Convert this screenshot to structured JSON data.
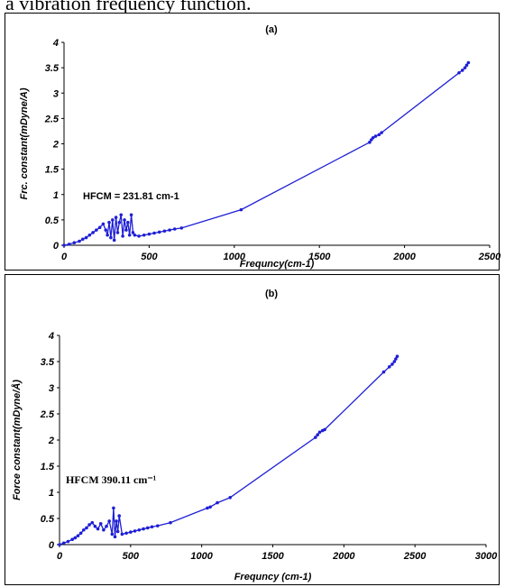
{
  "header": {
    "text": "a vibration frequency function."
  },
  "chart_data": [
    {
      "type": "line",
      "title": "(a)",
      "xlabel": "Frequncy(cm-1)",
      "ylabel": "Frc. constant(mDyne/A)",
      "xlim": [
        0,
        2500
      ],
      "ylim": [
        0,
        4
      ],
      "xticks": [
        "0",
        "500",
        "1000",
        "1500",
        "2000",
        "2500"
      ],
      "yticks": [
        "0",
        "0.5",
        "1",
        "1.5",
        "2",
        "2.5",
        "3",
        "3.5",
        "4"
      ],
      "annotation": "HFCM = 231.81 cm-1",
      "color": "#1f1fd6",
      "x": [
        0,
        30,
        60,
        90,
        110,
        130,
        150,
        170,
        190,
        210,
        230,
        245,
        255,
        265,
        275,
        285,
        295,
        305,
        315,
        325,
        335,
        345,
        355,
        365,
        375,
        385,
        395,
        405,
        415,
        440,
        470,
        500,
        530,
        560,
        590,
        620,
        650,
        690,
        1040,
        1795,
        1805,
        1815,
        1830,
        1850,
        1865,
        2320,
        2340,
        2355,
        2365,
        2375
      ],
      "y": [
        0.0,
        0.02,
        0.05,
        0.08,
        0.12,
        0.15,
        0.2,
        0.25,
        0.3,
        0.35,
        0.42,
        0.3,
        0.2,
        0.45,
        0.15,
        0.5,
        0.1,
        0.55,
        0.25,
        0.45,
        0.6,
        0.18,
        0.5,
        0.3,
        0.45,
        0.2,
        0.6,
        0.25,
        0.2,
        0.18,
        0.2,
        0.22,
        0.24,
        0.26,
        0.28,
        0.3,
        0.32,
        0.34,
        0.7,
        2.03,
        2.08,
        2.12,
        2.15,
        2.18,
        2.22,
        3.4,
        3.45,
        3.5,
        3.55,
        3.6
      ]
    },
    {
      "type": "line",
      "title": "(b)",
      "xlabel": "Frequncy (cm-1)",
      "ylabel": "Force constant(mDyne/Å)",
      "xlim": [
        0,
        3000
      ],
      "ylim": [
        0,
        4
      ],
      "xticks": [
        "0",
        "500",
        "1000",
        "1500",
        "2000",
        "2500",
        "3000"
      ],
      "yticks": [
        "0",
        "0.5",
        "1",
        "1.5",
        "2",
        "2.5",
        "3",
        "3.5",
        "4"
      ],
      "annotation": "HFCM 390.11 cm⁻¹",
      "color": "#1f1fd6",
      "x": [
        0,
        30,
        60,
        90,
        110,
        130,
        150,
        170,
        190,
        210,
        230,
        250,
        270,
        290,
        310,
        330,
        350,
        370,
        380,
        390,
        400,
        410,
        420,
        440,
        470,
        500,
        530,
        560,
        590,
        620,
        650,
        690,
        780,
        1040,
        1060,
        1110,
        1200,
        1800,
        1815,
        1830,
        1850,
        1865,
        2280,
        2320,
        2340,
        2355,
        2365,
        2375
      ],
      "y": [
        0.0,
        0.03,
        0.06,
        0.1,
        0.13,
        0.17,
        0.22,
        0.28,
        0.32,
        0.38,
        0.42,
        0.35,
        0.3,
        0.4,
        0.28,
        0.35,
        0.45,
        0.2,
        0.7,
        0.15,
        0.45,
        0.25,
        0.55,
        0.2,
        0.22,
        0.24,
        0.26,
        0.28,
        0.3,
        0.32,
        0.34,
        0.36,
        0.42,
        0.7,
        0.72,
        0.8,
        0.9,
        2.05,
        2.1,
        2.15,
        2.18,
        2.2,
        3.3,
        3.4,
        3.45,
        3.5,
        3.55,
        3.6
      ]
    }
  ]
}
